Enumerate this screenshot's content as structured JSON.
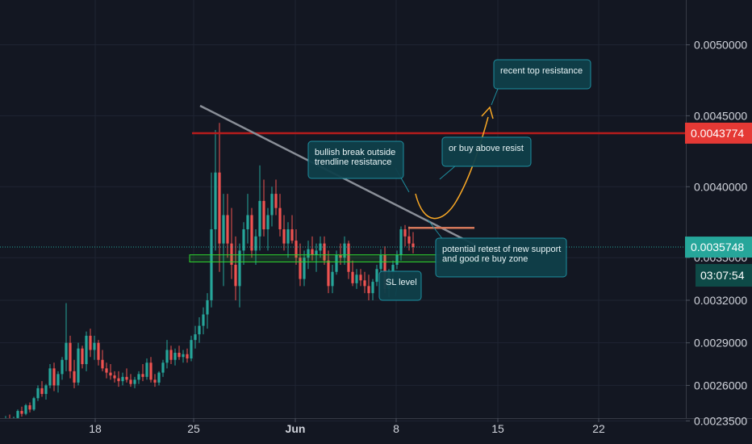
{
  "chart_data": {
    "type": "candlestick",
    "x_ticks": [
      "18",
      "25",
      "Jun",
      "8",
      "15",
      "22"
    ],
    "y_ticks": [
      "0.0050000",
      "0.0045000",
      "0.0040000",
      "0.0035000",
      "0.0032000",
      "0.0029000",
      "0.0026000",
      "0.0023500"
    ],
    "y_tick_values": [
      0.005,
      0.0045,
      0.004,
      0.0035,
      0.0032,
      0.0029,
      0.0026,
      0.00235
    ],
    "ylim": [
      0.00232,
      0.00542
    ],
    "resistance_label": "0.0043774",
    "resistance_value": 0.0043774,
    "current_price_label": "0.0035748",
    "current_price_value": 0.0035748,
    "countdown": "03:07:54",
    "support_zone": [
      0.00347,
      0.00352
    ],
    "breakout_level": 0.00371,
    "sl_level": 0.00323,
    "colors": {
      "background": "#131722",
      "up": "#26a69a",
      "down": "#ef5350",
      "resistance": "#b71c1c",
      "resistance_tag": "#e53935",
      "current_tag": "#26a69a",
      "current_line": "#26a69a",
      "support_zone": "#2fd52f",
      "trendline": "#8a8f98",
      "breakout_line": "#d4785a",
      "projection": "#f9a825",
      "callout_bg": "#0f3f4a",
      "callout_border": "#1e8fa0"
    },
    "annotations": {
      "recent_top": "recent top resistance",
      "bullish_break": [
        "bullish break outside",
        "trendline resistance"
      ],
      "buy_above": "or buy above resist",
      "retest": [
        "potential retest of new support",
        "and good re buy zone"
      ],
      "sl": "SL level"
    },
    "candles": [
      [
        2.35,
        2.385,
        2.3,
        2.36
      ],
      [
        2.36,
        2.395,
        2.33,
        2.345
      ],
      [
        2.345,
        2.38,
        2.31,
        2.37
      ],
      [
        2.37,
        2.43,
        2.35,
        2.42
      ],
      [
        2.42,
        2.45,
        2.38,
        2.4
      ],
      [
        2.4,
        2.47,
        2.39,
        2.46
      ],
      [
        2.46,
        2.48,
        2.41,
        2.43
      ],
      [
        2.43,
        2.52,
        2.42,
        2.51
      ],
      [
        2.51,
        2.6,
        2.49,
        2.58
      ],
      [
        2.58,
        2.63,
        2.52,
        2.54
      ],
      [
        2.54,
        2.61,
        2.5,
        2.6
      ],
      [
        2.6,
        2.75,
        2.58,
        2.72
      ],
      [
        2.72,
        2.76,
        2.56,
        2.6
      ],
      [
        2.6,
        2.7,
        2.55,
        2.68
      ],
      [
        2.68,
        2.8,
        2.64,
        2.78
      ],
      [
        2.78,
        3.18,
        2.7,
        2.9
      ],
      [
        2.9,
        2.95,
        2.65,
        2.7
      ],
      [
        2.7,
        2.78,
        2.58,
        2.62
      ],
      [
        2.62,
        2.9,
        2.6,
        2.86
      ],
      [
        2.86,
        2.88,
        2.72,
        2.75
      ],
      [
        2.75,
        2.98,
        2.7,
        2.95
      ],
      [
        2.95,
        3.0,
        2.8,
        2.85
      ],
      [
        2.85,
        2.95,
        2.78,
        2.9
      ],
      [
        2.9,
        2.92,
        2.74,
        2.78
      ],
      [
        2.78,
        2.85,
        2.7,
        2.72
      ],
      [
        2.72,
        2.76,
        2.65,
        2.69
      ],
      [
        2.69,
        2.75,
        2.64,
        2.67
      ],
      [
        2.67,
        2.7,
        2.62,
        2.65
      ],
      [
        2.65,
        2.7,
        2.59,
        2.63
      ],
      [
        2.63,
        2.69,
        2.6,
        2.66
      ],
      [
        2.66,
        2.72,
        2.62,
        2.64
      ],
      [
        2.64,
        2.68,
        2.59,
        2.61
      ],
      [
        2.61,
        2.66,
        2.58,
        2.64
      ],
      [
        2.64,
        2.7,
        2.61,
        2.68
      ],
      [
        2.68,
        2.75,
        2.63,
        2.66
      ],
      [
        2.66,
        2.79,
        2.64,
        2.76
      ],
      [
        2.76,
        2.8,
        2.62,
        2.64
      ],
      [
        2.64,
        2.68,
        2.59,
        2.62
      ],
      [
        2.62,
        2.7,
        2.6,
        2.69
      ],
      [
        2.69,
        2.78,
        2.66,
        2.76
      ],
      [
        2.76,
        2.92,
        2.72,
        2.85
      ],
      [
        2.85,
        2.88,
        2.75,
        2.78
      ],
      [
        2.78,
        2.86,
        2.74,
        2.83
      ],
      [
        2.83,
        2.88,
        2.78,
        2.8
      ],
      [
        2.8,
        2.85,
        2.76,
        2.82
      ],
      [
        2.82,
        2.86,
        2.76,
        2.79
      ],
      [
        2.79,
        2.95,
        2.77,
        2.92
      ],
      [
        2.92,
        3.02,
        2.86,
        2.96
      ],
      [
        2.96,
        3.08,
        2.9,
        3.02
      ],
      [
        3.02,
        3.15,
        2.96,
        3.1
      ],
      [
        3.1,
        3.25,
        3.0,
        3.2
      ],
      [
        3.2,
        4.1,
        3.15,
        3.7
      ],
      [
        3.7,
        4.4,
        3.55,
        4.1
      ],
      [
        4.1,
        4.45,
        3.4,
        3.6
      ],
      [
        3.6,
        3.95,
        3.3,
        3.8
      ],
      [
        3.8,
        3.95,
        3.5,
        3.6
      ],
      [
        3.6,
        3.85,
        3.35,
        3.45
      ],
      [
        3.45,
        3.65,
        3.2,
        3.3
      ],
      [
        3.3,
        3.6,
        3.15,
        3.55
      ],
      [
        3.55,
        3.75,
        3.45,
        3.7
      ],
      [
        3.7,
        3.95,
        3.6,
        3.8
      ],
      [
        3.8,
        3.85,
        3.5,
        3.55
      ],
      [
        3.55,
        3.7,
        3.45,
        3.65
      ],
      [
        3.65,
        4.15,
        3.55,
        3.9
      ],
      [
        3.9,
        4.05,
        3.65,
        3.7
      ],
      [
        3.7,
        3.85,
        3.55,
        3.8
      ],
      [
        3.8,
        4.0,
        3.72,
        3.95
      ],
      [
        3.95,
        4.05,
        3.8,
        3.85
      ],
      [
        3.85,
        3.95,
        3.65,
        3.7
      ],
      [
        3.7,
        3.8,
        3.55,
        3.6
      ],
      [
        3.6,
        3.75,
        3.5,
        3.7
      ],
      [
        3.7,
        3.8,
        3.6,
        3.62
      ],
      [
        3.62,
        3.7,
        3.45,
        3.5
      ],
      [
        3.5,
        3.6,
        3.3,
        3.35
      ],
      [
        3.35,
        3.55,
        3.3,
        3.5
      ],
      [
        3.5,
        3.62,
        3.42,
        3.56
      ],
      [
        3.56,
        3.65,
        3.48,
        3.52
      ],
      [
        3.52,
        3.6,
        3.4,
        3.55
      ],
      [
        3.55,
        3.65,
        3.5,
        3.6
      ],
      [
        3.6,
        3.65,
        3.45,
        3.48
      ],
      [
        3.48,
        3.55,
        3.25,
        3.3
      ],
      [
        3.3,
        3.45,
        3.25,
        3.4
      ],
      [
        3.4,
        3.55,
        3.38,
        3.52
      ],
      [
        3.52,
        3.6,
        3.45,
        3.5
      ],
      [
        3.5,
        3.65,
        3.45,
        3.6
      ],
      [
        3.6,
        3.62,
        3.35,
        3.4
      ],
      [
        3.4,
        3.48,
        3.3,
        3.32
      ],
      [
        3.32,
        3.42,
        3.28,
        3.38
      ],
      [
        3.38,
        3.42,
        3.3,
        3.34
      ],
      [
        3.34,
        3.4,
        3.25,
        3.3
      ],
      [
        3.3,
        3.38,
        3.2,
        3.25
      ],
      [
        3.25,
        3.35,
        3.2,
        3.33
      ],
      [
        3.33,
        3.45,
        3.3,
        3.42
      ],
      [
        3.42,
        3.56,
        3.4,
        3.52
      ],
      [
        3.52,
        3.58,
        3.25,
        3.28
      ],
      [
        3.28,
        3.42,
        3.22,
        3.4
      ],
      [
        3.4,
        3.48,
        3.35,
        3.45
      ],
      [
        3.45,
        3.55,
        3.42,
        3.52
      ],
      [
        3.52,
        3.72,
        3.48,
        3.7
      ],
      [
        3.7,
        3.73,
        3.58,
        3.65
      ],
      [
        3.65,
        3.72,
        3.55,
        3.6
      ],
      [
        3.6,
        3.68,
        3.53,
        3.575
      ]
    ]
  }
}
